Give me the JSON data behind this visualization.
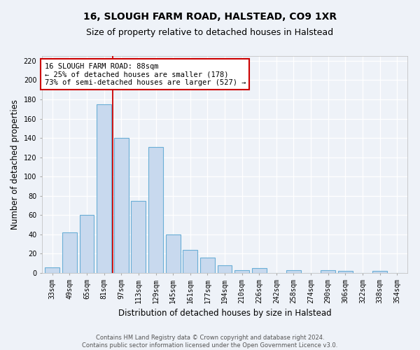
{
  "title": "16, SLOUGH FARM ROAD, HALSTEAD, CO9 1XR",
  "subtitle": "Size of property relative to detached houses in Halstead",
  "xlabel": "Distribution of detached houses by size in Halstead",
  "ylabel": "Number of detached properties",
  "categories": [
    "33sqm",
    "49sqm",
    "65sqm",
    "81sqm",
    "97sqm",
    "113sqm",
    "129sqm",
    "145sqm",
    "161sqm",
    "177sqm",
    "194sqm",
    "210sqm",
    "226sqm",
    "242sqm",
    "258sqm",
    "274sqm",
    "290sqm",
    "306sqm",
    "322sqm",
    "338sqm",
    "354sqm"
  ],
  "values": [
    6,
    42,
    60,
    175,
    140,
    75,
    131,
    40,
    24,
    16,
    8,
    3,
    5,
    0,
    3,
    0,
    3,
    2,
    0,
    2,
    0
  ],
  "bar_color": "#c8d9ee",
  "bar_edge_color": "#6aaed6",
  "property_line_x": 3.5,
  "annotation_line1": "16 SLOUGH FARM ROAD: 88sqm",
  "annotation_line2": "← 25% of detached houses are smaller (178)",
  "annotation_line3": "73% of semi-detached houses are larger (527) →",
  "annotation_box_color": "white",
  "annotation_box_edge": "#cc0000",
  "red_line_color": "#cc0000",
  "ylim": [
    0,
    225
  ],
  "yticks": [
    0,
    20,
    40,
    60,
    80,
    100,
    120,
    140,
    160,
    180,
    200,
    220
  ],
  "footer_line1": "Contains HM Land Registry data © Crown copyright and database right 2024.",
  "footer_line2": "Contains public sector information licensed under the Open Government Licence v3.0.",
  "bg_color": "#eef2f8",
  "grid_color": "white",
  "title_fontsize": 10,
  "subtitle_fontsize": 9,
  "xlabel_fontsize": 8.5,
  "ylabel_fontsize": 8.5,
  "tick_fontsize": 7,
  "annot_fontsize": 7.5,
  "footer_fontsize": 6
}
